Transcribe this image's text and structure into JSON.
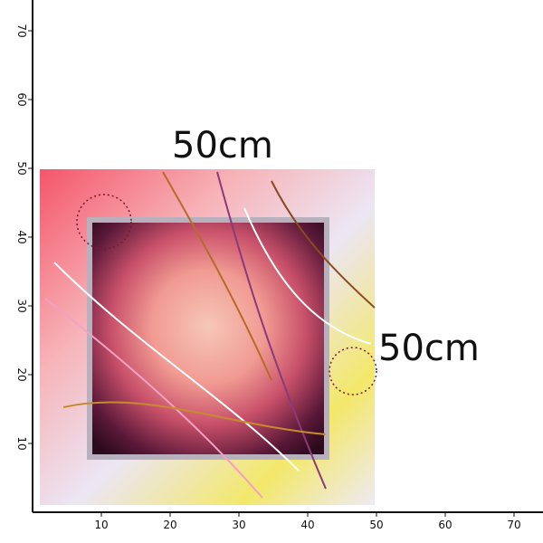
{
  "ruler": {
    "xticks": [
      10,
      20,
      30,
      40,
      50,
      60,
      70
    ],
    "yticks": [
      10,
      20,
      30,
      40,
      50,
      60,
      70
    ]
  },
  "width_label": "50cm",
  "height_label": "50cm"
}
